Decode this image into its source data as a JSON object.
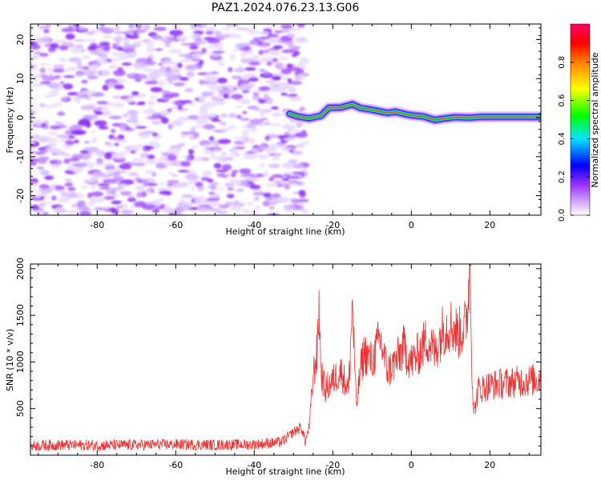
{
  "title": "PAZ1.2024.076.23.13.G06",
  "chart_data": [
    {
      "type": "heatmap",
      "xlabel": "Height of straight line (km)",
      "ylabel": "Frequency (Hz)",
      "xlim": [
        -97,
        33
      ],
      "ylim": [
        -25,
        24
      ],
      "xticks": [
        -80,
        -60,
        -40,
        -20,
        0,
        20
      ],
      "yticks": [
        -20,
        -10,
        0,
        10,
        20
      ],
      "noise_region_x": [
        -97,
        -27
      ],
      "signal_track": [
        {
          "x": -31,
          "y": 1.0
        },
        {
          "x": -29,
          "y": 0.3
        },
        {
          "x": -26,
          "y": -0.2
        },
        {
          "x": -23,
          "y": 0.5
        },
        {
          "x": -21,
          "y": 2.5
        },
        {
          "x": -18,
          "y": 2.6
        },
        {
          "x": -15,
          "y": 3.4
        },
        {
          "x": -13,
          "y": 2.5
        },
        {
          "x": -10,
          "y": 2.0
        },
        {
          "x": -8,
          "y": 1.6
        },
        {
          "x": -6,
          "y": 1.2
        },
        {
          "x": -4,
          "y": 1.5
        },
        {
          "x": -2,
          "y": 1.0
        },
        {
          "x": 0,
          "y": 0.6
        },
        {
          "x": 3,
          "y": 0.3
        },
        {
          "x": 6,
          "y": -0.6
        },
        {
          "x": 8,
          "y": -0.3
        },
        {
          "x": 11,
          "y": 0.1
        },
        {
          "x": 15,
          "y": 0.0
        },
        {
          "x": 18,
          "y": 0.2
        },
        {
          "x": 25,
          "y": 0.2
        },
        {
          "x": 33,
          "y": 0.2
        }
      ],
      "colorbar": {
        "label": "Normalized spectral amplitude",
        "range": [
          0,
          1
        ],
        "ticks": [
          "0.0",
          "0.2",
          "0.4",
          "0.6",
          "0.8"
        ],
        "colors": [
          "#ffffff",
          "#b65cff",
          "#0000ff",
          "#00e5ff",
          "#00ff00",
          "#ffff00",
          "#ff8000",
          "#ff0000",
          "#ff0066"
        ]
      }
    },
    {
      "type": "line",
      "xlabel": "Height of straight line (km)",
      "ylabel": "SNR (10 * v/v)",
      "xlim": [
        -97,
        33
      ],
      "ylim": [
        0,
        2050
      ],
      "xticks": [
        -80,
        -60,
        -40,
        -20,
        0,
        20
      ],
      "yticks": [
        500,
        1000,
        1500,
        2000
      ],
      "color": "#ee3333",
      "series": [
        {
          "x": [
            -97,
            -90,
            -80,
            -70,
            -60,
            -50,
            -40,
            -33,
            -30,
            -28,
            -27,
            -26,
            -25,
            -24,
            -23.5,
            -23,
            -22,
            -20,
            -18,
            -16,
            -15,
            -14,
            -13,
            -12,
            -10,
            -8,
            -6,
            -4,
            -2,
            0,
            2,
            4,
            6,
            8,
            10,
            12,
            14,
            15,
            15.5,
            16,
            17,
            20,
            25,
            30,
            33
          ],
          "y": [
            100,
            110,
            105,
            110,
            115,
            110,
            115,
            140,
            250,
            300,
            150,
            300,
            850,
            1100,
            1620,
            900,
            700,
            800,
            900,
            700,
            1630,
            500,
            900,
            1100,
            1000,
            1250,
            900,
            1000,
            1150,
            1000,
            1100,
            1250,
            1100,
            1350,
            1400,
            1300,
            1400,
            2050,
            800,
            450,
            700,
            750,
            780,
            800,
            820
          ]
        }
      ]
    }
  ]
}
